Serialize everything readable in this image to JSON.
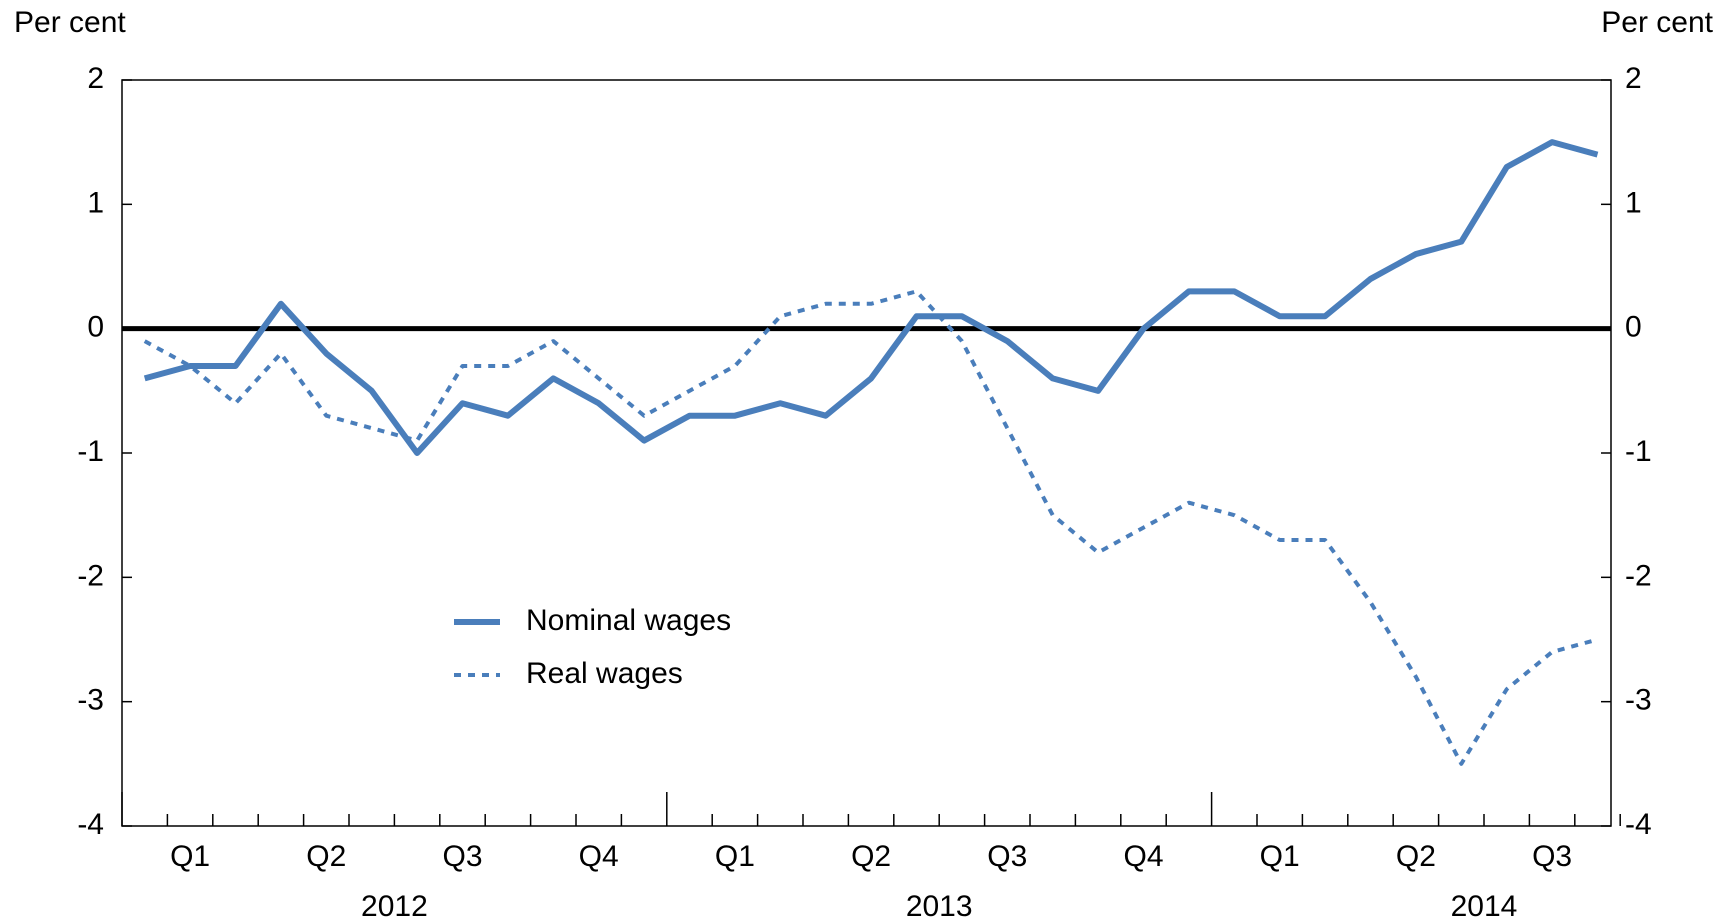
{
  "chart_data": {
    "type": "line",
    "ylabel": "Per cent",
    "y2label": "Per cent",
    "categories": [
      null,
      null,
      null,
      null,
      null,
      null,
      null,
      null,
      null,
      null,
      null,
      null,
      null,
      null,
      null,
      null,
      null,
      null,
      null,
      null,
      null,
      null,
      null,
      null,
      null,
      null,
      null,
      null,
      null,
      null,
      null,
      null,
      null
    ],
    "quarters": [
      "Q1",
      "Q2",
      "Q3",
      "Q4",
      "Q1",
      "Q2",
      "Q3",
      "Q4",
      "Q1",
      "Q2",
      "Q3"
    ],
    "years": [
      "2012",
      "2013",
      "2014"
    ],
    "series": [
      {
        "name": "Nominal wages",
        "color": "#4a7ebb",
        "style": "solid",
        "values": [
          -0.4,
          -0.3,
          -0.3,
          0.2,
          -0.2,
          -0.5,
          -1.0,
          -0.6,
          -0.7,
          -0.4,
          -0.6,
          -0.9,
          -0.7,
          -0.7,
          -0.6,
          -0.7,
          -0.4,
          0.1,
          0.1,
          -0.1,
          -0.4,
          -0.5,
          0.0,
          0.3,
          0.3,
          0.1,
          0.1,
          0.4,
          0.6,
          0.7,
          1.3,
          1.5,
          1.4
        ]
      },
      {
        "name": "Real wages",
        "color": "#4a7ebb",
        "style": "dotted",
        "values": [
          -0.1,
          -0.3,
          -0.6,
          -0.2,
          -0.7,
          -0.8,
          -0.9,
          -0.3,
          -0.3,
          -0.1,
          -0.4,
          -0.7,
          -0.5,
          -0.3,
          0.1,
          0.2,
          0.2,
          0.3,
          -0.1,
          -0.8,
          -1.5,
          -1.8,
          -1.6,
          -1.4,
          -1.5,
          -1.7,
          -1.7,
          -2.2,
          -2.8,
          -3.5,
          -2.9,
          -2.6,
          -2.5
        ]
      }
    ],
    "ylim": [
      -4,
      2
    ],
    "yticks": [
      -4,
      -3,
      -2,
      -1,
      0,
      1,
      2
    ],
    "y2lim": [
      -4,
      2
    ],
    "y2ticks": [
      -4,
      -3,
      -2,
      -1,
      0,
      1,
      2
    ],
    "zero_line": true
  }
}
